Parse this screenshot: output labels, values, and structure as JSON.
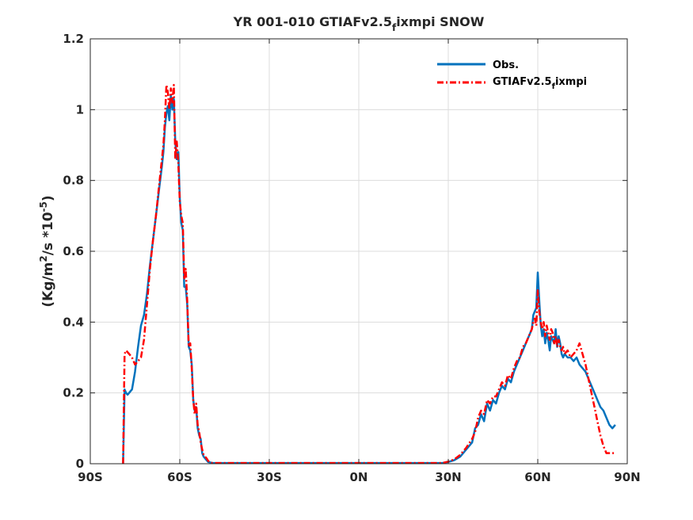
{
  "chart_data": {
    "type": "line",
    "title": "YR 001-010 GTIAFv2.5",
    "title_sub": "f",
    "title_suffix": "ixmpi SNOW",
    "ylabel_parts": {
      "a": "(Kg/m",
      "a_sup": "2",
      "b": "/s *10",
      "b_sup": "-5",
      "c": ")"
    },
    "xlim": [
      -90,
      90
    ],
    "ylim": [
      0,
      1.2
    ],
    "xticks": [
      -90,
      -60,
      -30,
      0,
      30,
      60,
      90
    ],
    "xtick_labels": [
      "90S",
      "60S",
      "30S",
      "0N",
      "30N",
      "60N",
      "90N"
    ],
    "yticks": [
      0,
      0.2,
      0.4,
      0.6,
      0.8,
      1,
      1.2
    ],
    "ytick_labels": [
      "0",
      "0.2",
      "0.4",
      "0.6",
      "0.8",
      "1",
      "1.2"
    ],
    "grid": true,
    "legend_position": "top-right",
    "legend": {
      "obs": "Obs.",
      "model_prefix": "GTIAFv2.5",
      "model_sub": "f",
      "model_suffix": "ixmpi"
    },
    "series": [
      {
        "key": "obs",
        "color": "#0072BD",
        "style": "solid",
        "x": [
          -79,
          -78.5,
          -78,
          -77.5,
          -77,
          -76,
          -75,
          -74,
          -73,
          -72,
          -71,
          -70,
          -69,
          -68,
          -67,
          -66,
          -65.5,
          -65,
          -64.5,
          -64,
          -63.5,
          -63,
          -62.5,
          -62,
          -61.5,
          -61,
          -60.5,
          -60,
          -59.5,
          -59,
          -58.5,
          -58,
          -57.5,
          -57,
          -56.5,
          -56,
          -55.5,
          -55,
          -54.5,
          -54,
          -53.5,
          -53,
          -52.5,
          -52,
          -51.5,
          -51,
          -50.5,
          -50,
          -49.5,
          -49,
          -48,
          -47,
          -46,
          -45,
          -40,
          -30,
          -20,
          -10,
          0,
          10,
          20,
          28,
          30,
          32,
          34,
          36,
          38,
          39,
          40,
          41,
          42,
          43,
          44,
          45,
          46,
          47,
          48,
          49,
          50,
          51,
          52,
          53,
          54,
          55,
          56,
          57,
          58,
          58.5,
          59,
          59.5,
          60,
          60.5,
          61,
          61.5,
          62,
          62.5,
          63,
          63.5,
          64,
          64.5,
          65,
          65.5,
          66,
          66.5,
          67,
          67.5,
          68,
          68.5,
          69,
          70,
          71,
          72,
          73,
          74,
          75,
          76,
          77,
          78,
          79,
          80,
          81,
          82,
          83,
          84,
          85,
          86
        ],
        "y": [
          0,
          0.21,
          0.2,
          0.195,
          0.2,
          0.21,
          0.26,
          0.33,
          0.39,
          0.42,
          0.48,
          0.56,
          0.63,
          0.7,
          0.77,
          0.84,
          0.88,
          0.95,
          0.99,
          1.01,
          0.97,
          1.04,
          1.0,
          1.03,
          0.91,
          0.86,
          0.88,
          0.75,
          0.68,
          0.66,
          0.5,
          0.5,
          0.45,
          0.33,
          0.32,
          0.28,
          0.18,
          0.15,
          0.16,
          0.1,
          0.08,
          0.07,
          0.03,
          0.02,
          0.015,
          0.01,
          0.005,
          0.004,
          0.003,
          0.002,
          0.002,
          0.002,
          0.002,
          0.002,
          0.002,
          0.002,
          0.002,
          0.002,
          0.002,
          0.002,
          0.002,
          0.002,
          0.005,
          0.01,
          0.02,
          0.04,
          0.06,
          0.1,
          0.11,
          0.14,
          0.12,
          0.17,
          0.15,
          0.18,
          0.17,
          0.2,
          0.22,
          0.21,
          0.24,
          0.23,
          0.26,
          0.28,
          0.3,
          0.32,
          0.34,
          0.36,
          0.38,
          0.42,
          0.43,
          0.44,
          0.54,
          0.46,
          0.39,
          0.36,
          0.38,
          0.34,
          0.37,
          0.35,
          0.32,
          0.36,
          0.35,
          0.34,
          0.38,
          0.33,
          0.36,
          0.34,
          0.31,
          0.3,
          0.31,
          0.3,
          0.3,
          0.29,
          0.3,
          0.28,
          0.27,
          0.26,
          0.24,
          0.22,
          0.2,
          0.18,
          0.16,
          0.15,
          0.13,
          0.11,
          0.1,
          0.11
        ]
      },
      {
        "key": "model",
        "color": "#FF0000",
        "style": "dashdot",
        "x": [
          -79,
          -78.5,
          -78,
          -77.5,
          -77,
          -76,
          -75,
          -74,
          -73,
          -72,
          -71,
          -70,
          -69,
          -68,
          -67,
          -66,
          -65.5,
          -65,
          -64.5,
          -64,
          -63.5,
          -63,
          -62.5,
          -62,
          -61.5,
          -61,
          -60.5,
          -60,
          -59.5,
          -59,
          -58.5,
          -58,
          -57.5,
          -57,
          -56.5,
          -56,
          -55.5,
          -55,
          -54.5,
          -54,
          -53.5,
          -53,
          -52.5,
          -52,
          -51.5,
          -51,
          -50.5,
          -50,
          -49.5,
          -49,
          -48,
          -47,
          -46,
          -45,
          -40,
          -30,
          -20,
          -10,
          0,
          10,
          20,
          28,
          30,
          32,
          34,
          36,
          38,
          39,
          40,
          41,
          42,
          43,
          44,
          45,
          46,
          47,
          48,
          49,
          50,
          51,
          52,
          53,
          54,
          55,
          56,
          57,
          58,
          58.5,
          59,
          59.5,
          60,
          60.5,
          61,
          61.5,
          62,
          62.5,
          63,
          63.5,
          64,
          64.5,
          65,
          65.5,
          66,
          66.5,
          67,
          67.5,
          68,
          68.5,
          69,
          70,
          71,
          72,
          73,
          74,
          75,
          76,
          77,
          78,
          79,
          80,
          81,
          82,
          83,
          84,
          85,
          86
        ],
        "y": [
          0,
          0.31,
          0.32,
          0.315,
          0.31,
          0.3,
          0.28,
          0.29,
          0.3,
          0.35,
          0.45,
          0.55,
          0.63,
          0.7,
          0.78,
          0.86,
          0.9,
          0.97,
          1.07,
          1.05,
          1.0,
          1.06,
          1.02,
          1.07,
          0.86,
          0.91,
          0.85,
          0.74,
          0.7,
          0.68,
          0.52,
          0.55,
          0.46,
          0.33,
          0.34,
          0.27,
          0.18,
          0.14,
          0.17,
          0.11,
          0.09,
          0.06,
          0.04,
          0.025,
          0.02,
          0.015,
          0.008,
          0.005,
          0.003,
          0.002,
          0.002,
          0.002,
          0.002,
          0.002,
          0.002,
          0.002,
          0.002,
          0.002,
          0.002,
          0.002,
          0.002,
          0.002,
          0.006,
          0.012,
          0.025,
          0.045,
          0.07,
          0.09,
          0.13,
          0.15,
          0.14,
          0.18,
          0.17,
          0.19,
          0.19,
          0.21,
          0.23,
          0.22,
          0.25,
          0.24,
          0.27,
          0.29,
          0.3,
          0.33,
          0.34,
          0.36,
          0.38,
          0.4,
          0.41,
          0.39,
          0.49,
          0.43,
          0.4,
          0.38,
          0.4,
          0.36,
          0.39,
          0.37,
          0.35,
          0.38,
          0.37,
          0.34,
          0.36,
          0.33,
          0.35,
          0.33,
          0.32,
          0.33,
          0.31,
          0.32,
          0.3,
          0.31,
          0.32,
          0.34,
          0.31,
          0.28,
          0.24,
          0.2,
          0.16,
          0.12,
          0.08,
          0.05,
          0.03,
          0.03,
          0.03,
          0.03
        ]
      }
    ]
  }
}
